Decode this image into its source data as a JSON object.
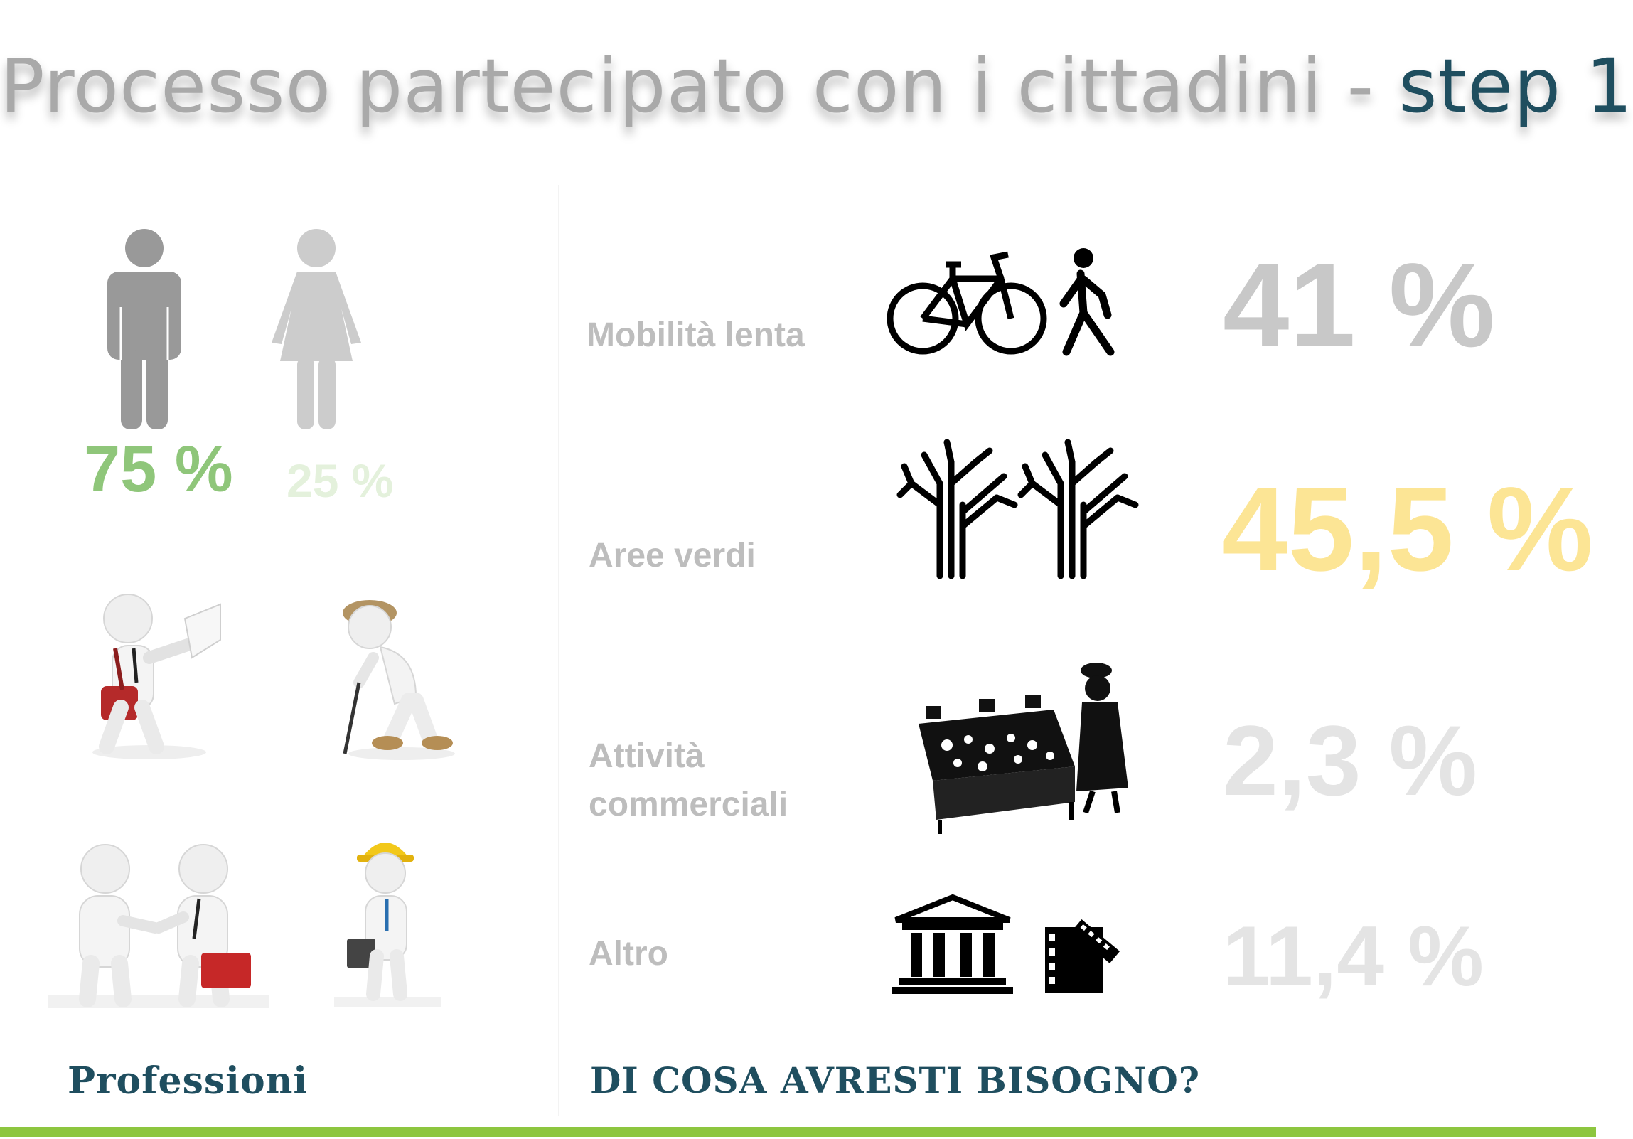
{
  "title": {
    "main": "Processo partecipato con i cittadini - ",
    "step": "step 1"
  },
  "gender": {
    "male": {
      "percent": "75 %",
      "color": "#8fc67a",
      "icon": "man-icon"
    },
    "female": {
      "percent": "25 %",
      "color": "#e4f1dc",
      "icon": "woman-icon"
    }
  },
  "professions": {
    "label": "Professioni",
    "figures": [
      "postman-figure",
      "elderly-man-figure",
      "handshake-figures",
      "worker-figure"
    ]
  },
  "needs": {
    "label": "DI COSA AVRESTI BISOGNO?",
    "items": [
      {
        "label": "Mobilità lenta",
        "percent": "41 %",
        "color": "#c8c8c8",
        "icons": [
          "bicycle-icon",
          "pedestrian-icon"
        ]
      },
      {
        "label": "Aree verdi",
        "percent": "45,5 %",
        "color": "#fce595",
        "icons": [
          "tree-icon",
          "tree-icon"
        ]
      },
      {
        "label_line1": "Attività",
        "label_line2": "commerciali",
        "percent": "2,3 %",
        "color": "#e4e4e4",
        "icons": [
          "market-stall-icon"
        ]
      },
      {
        "label": "Altro",
        "percent": "11,4 %",
        "color": "#e4e4e4",
        "icons": [
          "museum-icon",
          "film-icon"
        ]
      }
    ]
  },
  "colors": {
    "accent_bar": "#8dc63f",
    "dark_teal": "#1f4e5f"
  }
}
